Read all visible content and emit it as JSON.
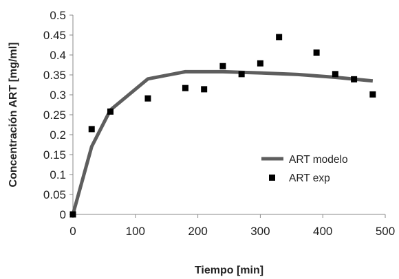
{
  "chart_data": {
    "type": "scatter",
    "title": "",
    "xlabel": "Tiempo  [min]",
    "ylabel": "Concentración ART [mg/ml]",
    "xlim": [
      0,
      500
    ],
    "ylim": [
      0,
      0.5
    ],
    "x_ticks": [
      "0",
      "100",
      "200",
      "300",
      "400",
      "500"
    ],
    "y_ticks": [
      "0",
      "0.05",
      "0.1",
      "0.15",
      "0.2",
      "0.25",
      "0.3",
      "0.35",
      "0.4",
      "0.45",
      "0.5"
    ],
    "grid": false,
    "legend_position": "bottom-right",
    "series": [
      {
        "name": "ART modelo",
        "kind": "line",
        "color": "#5e5e5e",
        "x": [
          0,
          30,
          60,
          120,
          180,
          240,
          300,
          360,
          420,
          480
        ],
        "y": [
          0.0,
          0.17,
          0.262,
          0.34,
          0.358,
          0.358,
          0.355,
          0.351,
          0.344,
          0.335
        ]
      },
      {
        "name": "ART exp",
        "kind": "scatter",
        "marker": "square",
        "color": "#000000",
        "x": [
          0,
          30,
          60,
          120,
          180,
          210,
          240,
          270,
          300,
          330,
          390,
          420,
          450,
          480
        ],
        "y": [
          0.0,
          0.214,
          0.258,
          0.291,
          0.317,
          0.314,
          0.372,
          0.352,
          0.379,
          0.445,
          0.406,
          0.352,
          0.339,
          0.301
        ]
      }
    ]
  }
}
